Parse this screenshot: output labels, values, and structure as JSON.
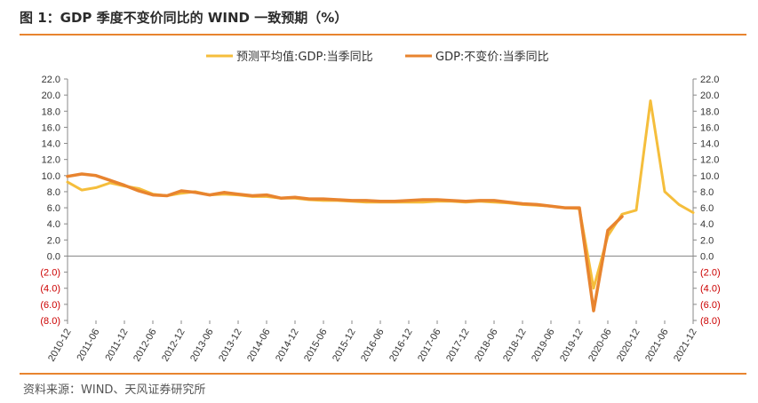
{
  "header": {
    "title": "图 1：GDP 季度不变价同比的 WIND 一致预期（%）"
  },
  "footer": {
    "source": "资料来源：WIND、天风证券研究所"
  },
  "colors": {
    "forecast": "#f5be3c",
    "actual": "#e8842f",
    "axis": "#888888",
    "tick_positive": "#333333",
    "tick_negative": "#cc0000"
  },
  "chart_data": {
    "type": "line",
    "title": "",
    "x": [
      "2010-12",
      "2011-03",
      "2011-06",
      "2011-09",
      "2011-12",
      "2012-03",
      "2012-06",
      "2012-09",
      "2012-12",
      "2013-03",
      "2013-06",
      "2013-09",
      "2013-12",
      "2014-03",
      "2014-06",
      "2014-09",
      "2014-12",
      "2015-03",
      "2015-06",
      "2015-09",
      "2015-12",
      "2016-03",
      "2016-06",
      "2016-09",
      "2016-12",
      "2017-03",
      "2017-06",
      "2017-09",
      "2017-12",
      "2018-03",
      "2018-06",
      "2018-09",
      "2018-12",
      "2019-03",
      "2019-06",
      "2019-09",
      "2019-12",
      "2020-03",
      "2020-06",
      "2020-09",
      "2020-12",
      "2021-03",
      "2021-06",
      "2021-09",
      "2021-12"
    ],
    "x_tick_labels": [
      "2010-12",
      "2011-06",
      "2011-12",
      "2012-06",
      "2012-12",
      "2013-06",
      "2013-12",
      "2014-06",
      "2014-12",
      "2015-06",
      "2015-12",
      "2016-06",
      "2016-12",
      "2017-06",
      "2017-12",
      "2018-06",
      "2018-12",
      "2019-06",
      "2019-12",
      "2020-06",
      "2020-12",
      "2021-06",
      "2021-12"
    ],
    "y_tick_labels": [
      "22.0",
      "20.0",
      "18.0",
      "16.0",
      "14.0",
      "12.0",
      "10.0",
      "8.0",
      "6.0",
      "4.0",
      "2.0",
      "0.0",
      "(2.0)",
      "(4.0)",
      "(6.0)",
      "(8.0)"
    ],
    "ylim": [
      -8,
      22
    ],
    "legend_position": "top-center",
    "series": [
      {
        "name": "预测平均值:GDP:当季同比",
        "values": [
          9.2,
          8.2,
          8.5,
          9.1,
          8.7,
          8.4,
          7.7,
          7.5,
          7.8,
          8.0,
          7.6,
          7.7,
          7.6,
          7.4,
          7.4,
          7.2,
          7.2,
          7.0,
          6.9,
          6.9,
          6.8,
          6.7,
          6.7,
          6.7,
          6.7,
          6.7,
          6.8,
          6.8,
          6.7,
          6.8,
          6.7,
          6.6,
          6.4,
          6.3,
          6.2,
          6.0,
          5.9,
          -4.0,
          2.5,
          5.2,
          5.7,
          19.3,
          8.0,
          6.4,
          5.4
        ]
      },
      {
        "name": "GDP:不变价:当季同比",
        "values": [
          9.9,
          10.2,
          10.0,
          9.4,
          8.8,
          8.1,
          7.6,
          7.5,
          8.1,
          7.9,
          7.6,
          7.9,
          7.7,
          7.5,
          7.6,
          7.2,
          7.3,
          7.1,
          7.1,
          7.0,
          6.9,
          6.9,
          6.8,
          6.8,
          6.9,
          7.0,
          7.0,
          6.9,
          6.8,
          6.9,
          6.9,
          6.7,
          6.5,
          6.4,
          6.2,
          6.0,
          6.0,
          -6.8,
          3.2,
          4.9,
          null,
          null,
          null,
          null,
          null
        ]
      }
    ]
  }
}
